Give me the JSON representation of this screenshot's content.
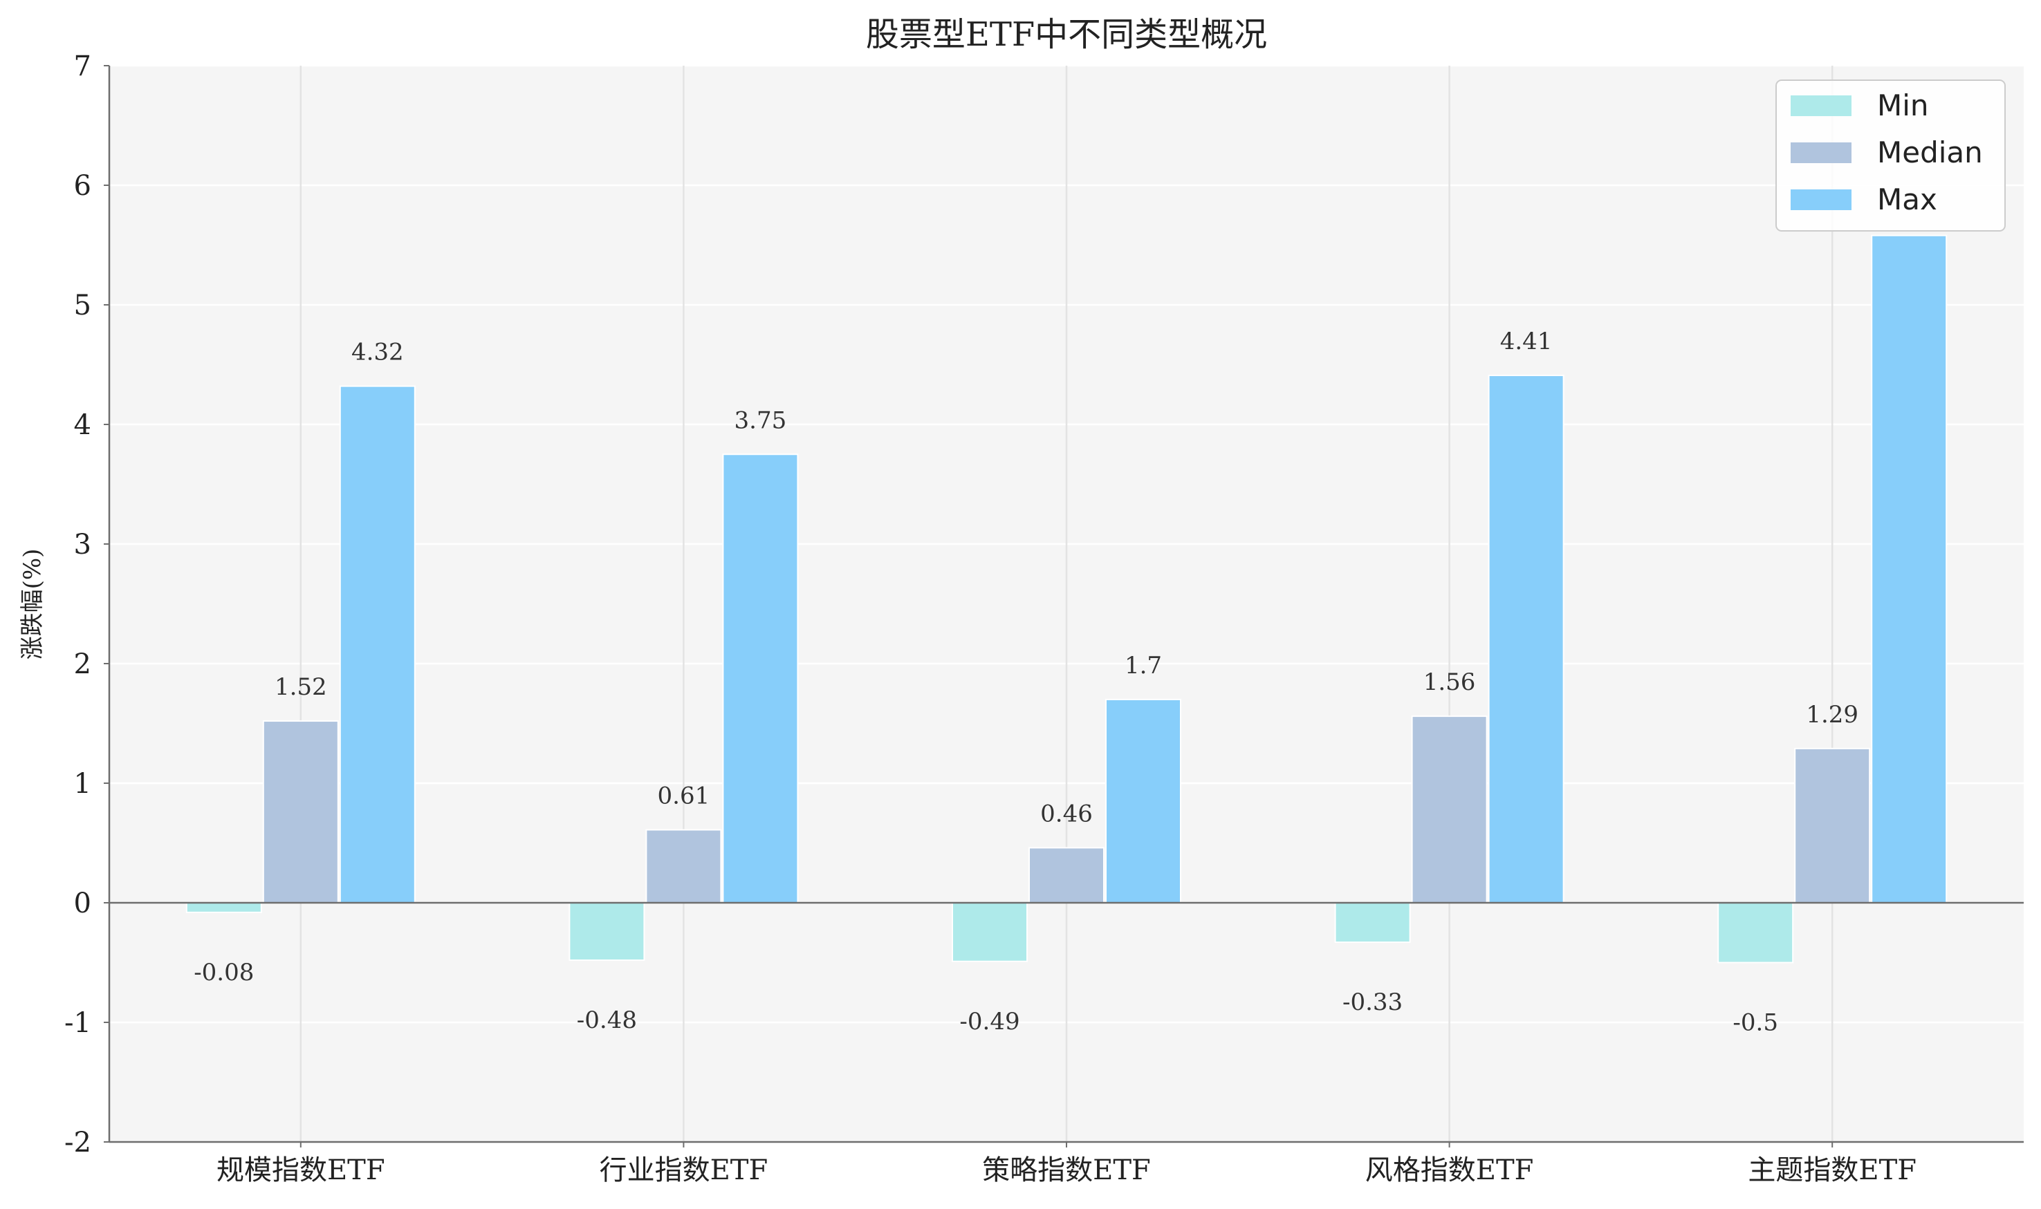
{
  "chart_data": {
    "type": "bar",
    "title": "股票型ETF中不同类型概况",
    "xlabel": "",
    "ylabel": "涨跌幅(%)",
    "ylim": [
      -2,
      7
    ],
    "yticks": [
      "-2",
      "-1",
      "0",
      "1",
      "2",
      "3",
      "4",
      "5",
      "6",
      "7"
    ],
    "categories": [
      "规模指数ETF",
      "行业指数ETF",
      "策略指数ETF",
      "风格指数ETF",
      "主题指数ETF"
    ],
    "series": [
      {
        "name": "Min",
        "color": "#aeeaea",
        "values": [
          -0.08,
          -0.48,
          -0.49,
          -0.33,
          -0.5
        ],
        "labels": [
          "-0.08",
          "-0.48",
          "-0.49",
          "-0.33",
          "-0.5"
        ]
      },
      {
        "name": "Median",
        "color": "#b0c4de",
        "values": [
          1.52,
          0.61,
          0.46,
          1.56,
          1.29
        ],
        "labels": [
          "1.52",
          "0.61",
          "0.46",
          "1.56",
          "1.29"
        ]
      },
      {
        "name": "Max",
        "color": "#87cefa",
        "values": [
          4.32,
          3.75,
          1.7,
          4.41,
          5.58
        ],
        "labels": [
          "4.32",
          "3.75",
          "1.7",
          "4.41",
          ""
        ]
      }
    ],
    "grid": true,
    "legend_position": "top-right"
  }
}
